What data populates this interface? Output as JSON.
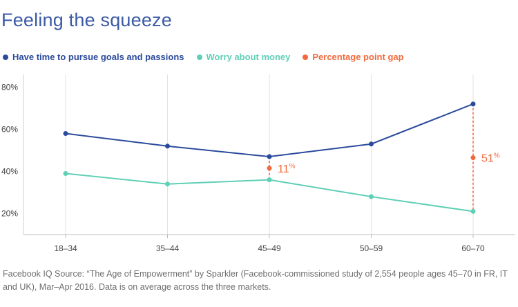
{
  "chart_data": {
    "type": "line",
    "title": "Feeling the squeeze",
    "categories": [
      "18–34",
      "35–44",
      "45–49",
      "50–59",
      "60–70"
    ],
    "series": [
      {
        "name": "Have time to pursue goals and passions",
        "color": "#2b4a9c",
        "values": [
          58,
          52,
          47,
          53,
          72
        ]
      },
      {
        "name": "Worry about money",
        "color": "#5fcfb6",
        "values": [
          39,
          34,
          36,
          28,
          21
        ]
      }
    ],
    "gap_legend": {
      "name": "Percentage point gap",
      "color": "#f06a3d"
    },
    "gaps": [
      {
        "category": "45–49",
        "value": "11",
        "unit": "%"
      },
      {
        "category": "60–70",
        "value": "51",
        "unit": "%"
      }
    ],
    "y_ticks": [
      "20%",
      "40%",
      "60%",
      "80%"
    ],
    "y_tick_values": [
      20,
      40,
      60,
      80
    ],
    "ylim": [
      10,
      86
    ],
    "grid": "vertical"
  },
  "source": "Facebook IQ Source: “The Age of Empowerment” by Sparkler (Facebook-commissioned study of 2,554 people ages 45–70 in FR, IT and UK), Mar–Apr 2016. Data is on average across the three markets."
}
